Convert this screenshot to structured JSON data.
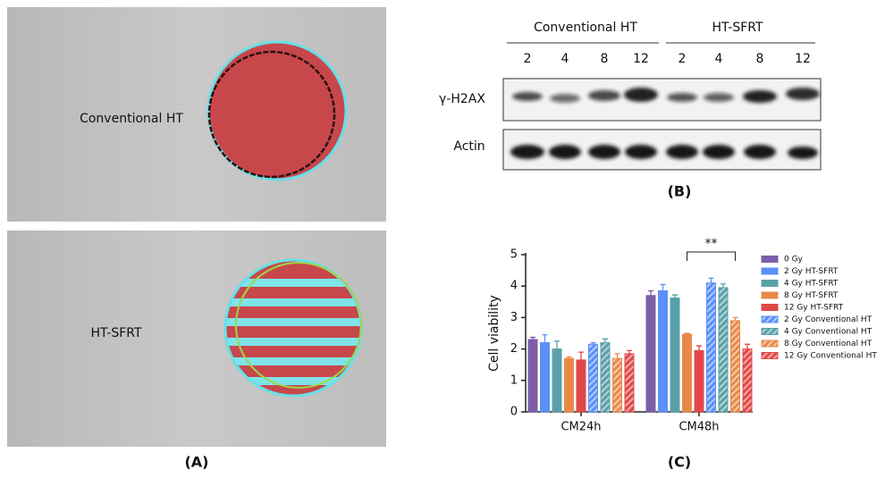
{
  "panel_a": {
    "label": "(A)",
    "images": [
      {
        "label": "Conventional HT"
      },
      {
        "label": "HT-SFRT"
      }
    ]
  },
  "panel_b": {
    "label": "(B)",
    "groups": [
      "Conventional HT",
      "HT-SFRT"
    ],
    "lanes": [
      "2",
      "4",
      "8",
      "12",
      "2",
      "4",
      "8",
      "12"
    ],
    "rows": [
      "γ-H2AX",
      "Actin"
    ]
  },
  "chart_data": {
    "type": "bar",
    "panel_label": "(C)",
    "y_label": "Cell viability",
    "categories": [
      "CM24h",
      "CM48h"
    ],
    "ylim": [
      0,
      5
    ],
    "yticks": [
      0,
      1,
      2,
      3,
      4,
      5
    ],
    "annotation": "**",
    "series": [
      {
        "name": "0 Gy",
        "color": "#7b5ea7",
        "hatch": false,
        "values": [
          2.3,
          3.7
        ],
        "errors": [
          0.07,
          0.15
        ]
      },
      {
        "name": "2 Gy HT-SFRT",
        "color": "#5b8ff9",
        "hatch": false,
        "values": [
          2.2,
          3.85
        ],
        "errors": [
          0.25,
          0.2
        ]
      },
      {
        "name": "4 Gy HT-SFRT",
        "color": "#5aa0a8",
        "hatch": false,
        "values": [
          2.0,
          3.62
        ],
        "errors": [
          0.25,
          0.1
        ]
      },
      {
        "name": "8 Gy HT-SFRT",
        "color": "#e8894a",
        "hatch": false,
        "values": [
          1.7,
          2.47
        ],
        "errors": [
          0.05,
          0.03
        ]
      },
      {
        "name": "12 Gy HT-SFRT",
        "color": "#e04848",
        "hatch": false,
        "values": [
          1.65,
          1.95
        ],
        "errors": [
          0.25,
          0.15
        ]
      },
      {
        "name": "2 Gy Conventional HT",
        "color": "#5b8ff9",
        "hatch": true,
        "values": [
          2.15,
          4.1
        ],
        "errors": [
          0.05,
          0.15
        ]
      },
      {
        "name": "4 Gy Conventional HT",
        "color": "#5aa0a8",
        "hatch": true,
        "values": [
          2.2,
          3.95
        ],
        "errors": [
          0.12,
          0.12
        ]
      },
      {
        "name": "8 Gy Conventional HT",
        "color": "#e8894a",
        "hatch": true,
        "values": [
          1.7,
          2.9
        ],
        "errors": [
          0.15,
          0.1
        ]
      },
      {
        "name": "12 Gy Conventional HT",
        "color": "#e04848",
        "hatch": true,
        "values": [
          1.85,
          2.0
        ],
        "errors": [
          0.1,
          0.15
        ]
      }
    ]
  }
}
